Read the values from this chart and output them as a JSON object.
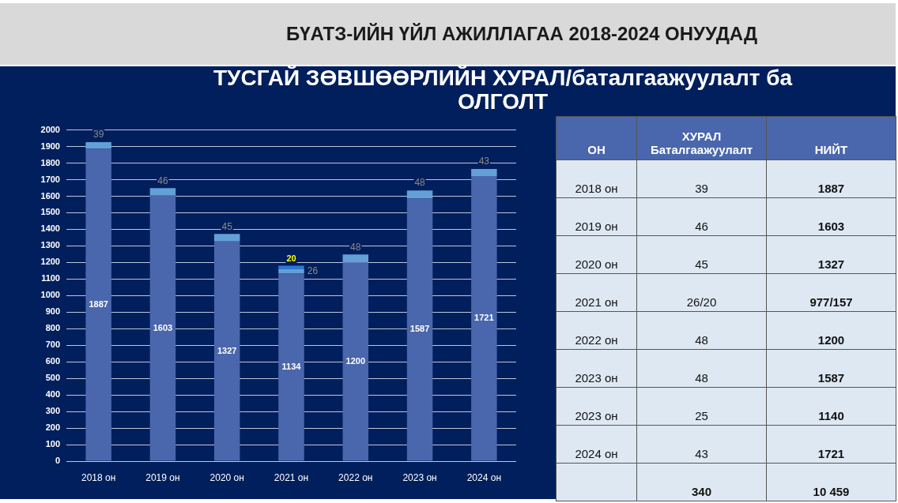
{
  "chart_data": [
    {
      "type": "bar",
      "title": "БҮАТЗ-ИЙН ҮЙЛ АЖИЛЛАГАА 2018-2024 ОНУУДАД",
      "subtitle": "ТУСГАЙ ЗӨВШӨӨРЛИЙН ХУРАЛ/баталгаажуулалт ба ОЛГОЛТ",
      "categories": [
        "2018 он",
        "2019 он",
        "2020 он",
        "2021 он",
        "2022 он",
        "2023 он",
        "2024 он"
      ],
      "series": [
        {
          "color": "#4a66ac",
          "values": [
            1887,
            1603,
            1327,
            1134,
            1200,
            1587,
            1721
          ]
        },
        {
          "color": "#64a0d8",
          "values": [
            39,
            46,
            45,
            26,
            48,
            48,
            43
          ]
        },
        {
          "color": "#2e78d6",
          "values": [
            null,
            null,
            null,
            20,
            null,
            null,
            null
          ]
        }
      ],
      "stacked": true,
      "ylim": [
        0,
        2000
      ],
      "yticks": [
        0,
        100,
        200,
        300,
        400,
        500,
        600,
        700,
        800,
        900,
        1000,
        1100,
        1200,
        1300,
        1400,
        1500,
        1600,
        1700,
        1800,
        1900,
        2000
      ],
      "grid": "y",
      "data_labels": true
    },
    {
      "type": "heatmap",
      "ylabel": "ОН",
      "categories": [
        "ХУРАЛ\nБаталгаажуулалт",
        "НИЙТ"
      ],
      "y_categories": [
        "2018 он",
        "2019 он",
        "2020 он",
        "2021 он",
        "2022 он",
        "2023 он",
        "2023 он",
        "2024 он",
        null
      ],
      "cells": [
        [
          39,
          1887
        ],
        [
          46,
          1603
        ],
        [
          45,
          1327
        ],
        [
          null,
          null
        ],
        [
          48,
          1200
        ],
        [
          48,
          1587
        ],
        [
          25,
          1140
        ],
        [
          43,
          1721
        ],
        [
          340,
          10459
        ]
      ],
      "cell_labels": [
        [
          "39",
          "1887"
        ],
        [
          "46",
          "1603"
        ],
        [
          "45",
          "1327"
        ],
        [
          "26/20",
          "977/157"
        ],
        [
          "48",
          "1200"
        ],
        [
          "48",
          "1587"
        ],
        [
          "25",
          "1140"
        ],
        [
          "43",
          "1721"
        ],
        [
          "340",
          "10 459"
        ]
      ]
    }
  ]
}
